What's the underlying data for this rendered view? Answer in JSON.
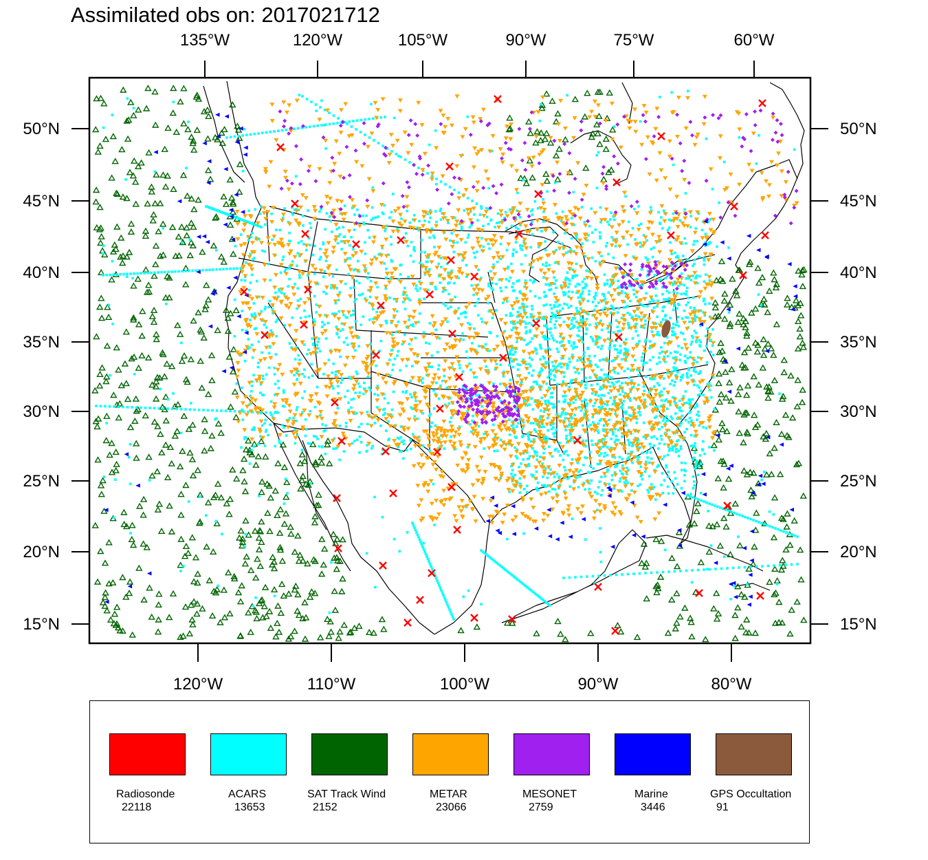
{
  "title": "Assimilated obs on: 2017021712",
  "map": {
    "top_axis_labels": [
      "135°W",
      "120°W",
      "105°W",
      "90°W",
      "75°W",
      "60°W"
    ],
    "bottom_axis_labels": [
      "120°W",
      "110°W",
      "100°W",
      "90°W",
      "80°W"
    ],
    "left_axis_labels": [
      "50°N",
      "45°N",
      "40°N",
      "35°N",
      "30°N",
      "25°N",
      "20°N",
      "15°N"
    ],
    "right_axis_labels": [
      "50°N",
      "45°N",
      "40°N",
      "35°N",
      "30°N",
      "25°N",
      "20°N",
      "15°N"
    ],
    "extent": {
      "lon_min": -128.2,
      "lon_max": -74.2,
      "lat_min": 13.7,
      "lat_max": 53.5
    },
    "background": "#ffffff"
  },
  "legend": {
    "items": [
      {
        "name": "Radiosonde",
        "count": "22118",
        "color": "#ff0000",
        "marker": "x-cross"
      },
      {
        "name": "ACARS",
        "count": "13653",
        "color": "#00ffff",
        "marker": "square"
      },
      {
        "name": "SAT Track Wind",
        "count": "2152",
        "color": "#006400",
        "marker": "triangle-up-open"
      },
      {
        "name": "METAR",
        "count": "23066",
        "color": "#ffa500",
        "marker": "triangle-down"
      },
      {
        "name": "MESONET",
        "count": "2759",
        "color": "#a020f0",
        "marker": "diamond"
      },
      {
        "name": "Marine",
        "count": "3446",
        "color": "#0000ff",
        "marker": "triangle-left"
      },
      {
        "name": "GPS Occultation",
        "count": "91",
        "color": "#8b5a3c",
        "marker": "filled-blob"
      }
    ]
  }
}
